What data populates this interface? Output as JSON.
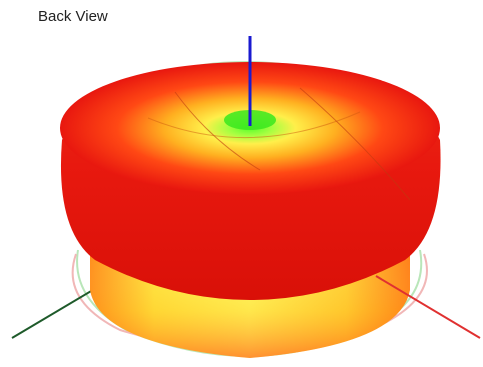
{
  "viewport": {
    "label": "Back View"
  },
  "scene": {
    "object": "3d-radiation-pattern",
    "axes": {
      "x_color": "#e03030",
      "y_color": "#1e5a2a",
      "z_color": "#1a1ad0"
    },
    "gradient_colors": {
      "core": "#7dff3a",
      "mid": "#ffe94a",
      "edge": "#e81a12"
    }
  }
}
